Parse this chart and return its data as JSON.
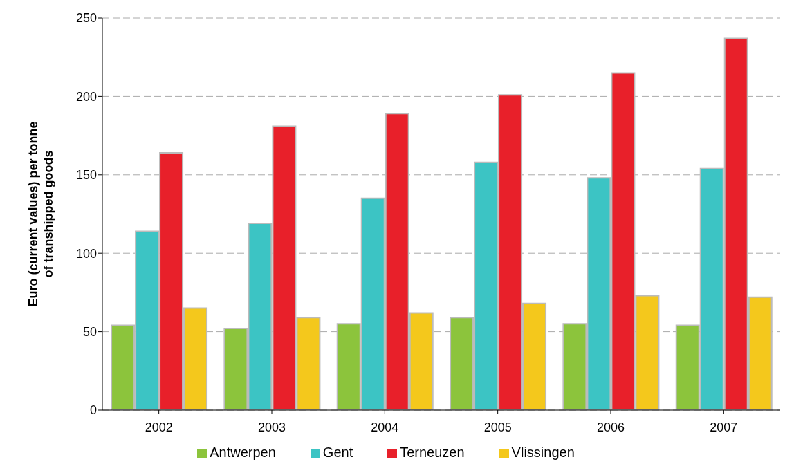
{
  "chart_data": {
    "type": "bar",
    "ylabel": "Euro (current values) per tonne of transhipped goods",
    "categories": [
      "2002",
      "2003",
      "2004",
      "2005",
      "2006",
      "2007"
    ],
    "series": [
      {
        "name": "Antwerpen",
        "color": "#8cc43c",
        "values": [
          54,
          52,
          55,
          59,
          55,
          54
        ]
      },
      {
        "name": "Gent",
        "color": "#3cc4c4",
        "values": [
          114,
          119,
          135,
          158,
          148,
          154
        ]
      },
      {
        "name": "Terneuzen",
        "color": "#e8202a",
        "values": [
          164,
          181,
          189,
          201,
          215,
          237
        ]
      },
      {
        "name": "Vlissingen",
        "color": "#f4c81c",
        "values": [
          65,
          59,
          62,
          68,
          73,
          72
        ]
      }
    ],
    "ylim": [
      0,
      250
    ],
    "yticks": [
      0,
      50,
      100,
      150,
      200,
      250
    ],
    "grid": "y",
    "legend": "bottom"
  }
}
